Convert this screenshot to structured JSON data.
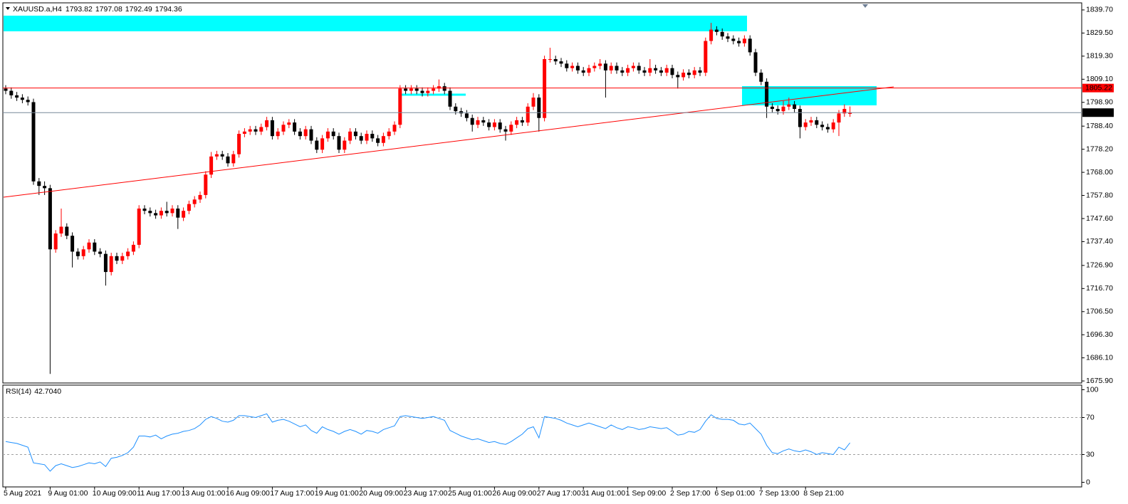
{
  "chart_data": [
    {
      "type": "candlestick",
      "title": "XAUUSD.a,H4",
      "categories": [
        "5 Aug 2021",
        null,
        null,
        null,
        null,
        null,
        null,
        null,
        "9 Aug 01:00",
        null,
        null,
        null,
        null,
        null,
        null,
        null,
        "10 Aug 09:00",
        null,
        null,
        null,
        null,
        null,
        null,
        null,
        "11 Aug 17:00",
        null,
        null,
        null,
        null,
        null,
        null,
        null,
        "13 Aug 01:00",
        null,
        null,
        null,
        null,
        null,
        null,
        null,
        "16 Aug 09:00",
        null,
        null,
        null,
        null,
        null,
        null,
        null,
        "17 Aug 17:00",
        null,
        null,
        null,
        null,
        null,
        null,
        null,
        "19 Aug 01:00",
        null,
        null,
        null,
        null,
        null,
        null,
        null,
        "20 Aug 09:00",
        null,
        null,
        null,
        null,
        null,
        null,
        null,
        "23 Aug 17:00",
        null,
        null,
        null,
        null,
        null,
        null,
        null,
        "25 Aug 01:00",
        null,
        null,
        null,
        null,
        null,
        null,
        null,
        "26 Aug 09:00",
        null,
        null,
        null,
        null,
        null,
        null,
        null,
        "27 Aug 17:00",
        null,
        null,
        null,
        null,
        null,
        null,
        null,
        "31 Aug 01:00",
        null,
        null,
        null,
        null,
        null,
        null,
        null,
        "1 Sep 09:00",
        null,
        null,
        null,
        null,
        null,
        null,
        null,
        "2 Sep 17:00",
        null,
        null,
        null,
        null,
        null,
        null,
        null,
        "6 Sep 01:00",
        null,
        null,
        null,
        null,
        null,
        null,
        null,
        "7 Sep 13:00",
        null,
        null,
        null,
        null,
        null,
        null,
        null,
        "8 Sep 21:00",
        null,
        null,
        null,
        null,
        null,
        null,
        null,
        null
      ],
      "open": [
        1805,
        1804,
        1802,
        1801,
        1800,
        1799,
        1764,
        1762,
        1761,
        1734,
        1741,
        1744,
        1740,
        1733,
        1731,
        1734,
        1737,
        1733,
        1732,
        1724,
        1731,
        1729,
        1731,
        1733,
        1736,
        1752,
        1751,
        1750,
        1749,
        1751,
        1750,
        1752,
        1748,
        1751,
        1754,
        1756,
        1758,
        1767,
        1775,
        1776,
        1775,
        1772,
        1776,
        1785,
        1786,
        1787,
        1786,
        1788,
        1791,
        1784,
        1786,
        1789,
        1790,
        1786,
        1784,
        1787,
        1782,
        1778,
        1783,
        1786,
        1784,
        1778,
        1782,
        1786,
        1784,
        1782,
        1785,
        1783,
        1781,
        1784,
        1786,
        1789,
        1805,
        1804,
        1805,
        1804,
        1803,
        1804,
        1805,
        1806,
        1804,
        1797,
        1795,
        1794,
        1792,
        1789,
        1791,
        1790,
        1788,
        1790,
        1787,
        1786,
        1789,
        1791,
        1790,
        1797,
        1801,
        1792,
        1818,
        1818,
        1817,
        1816,
        1814,
        1815,
        1813,
        1812,
        1814,
        1815,
        1816,
        1813,
        1815,
        1813,
        1812,
        1814,
        1815,
        1813,
        1812,
        1814,
        1813,
        1812,
        1814,
        1811,
        1810,
        1812,
        1811,
        1813,
        1812,
        1826,
        1831,
        1830,
        1828,
        1827,
        1826,
        1825,
        1827,
        1821,
        1812,
        1808,
        1797,
        1796,
        1795,
        1797,
        1798,
        1796,
        1788,
        1790,
        1791,
        1789,
        1788,
        1787,
        1790,
        1794,
        1793.82
      ],
      "high": [
        1806.5,
        1805.5,
        1803.5,
        1802.5,
        1801.5,
        1800.5,
        1765.5,
        1764,
        1762.5,
        1742.5,
        1752,
        1745.5,
        1741.5,
        1734.5,
        1735.5,
        1738.5,
        1738.5,
        1734.5,
        1733.5,
        1732.5,
        1732.5,
        1732.5,
        1734.5,
        1737.5,
        1753.5,
        1753.5,
        1752.5,
        1751.5,
        1752.5,
        1755,
        1753.5,
        1753.5,
        1752.5,
        1755.5,
        1757.5,
        1759.5,
        1768.5,
        1777,
        1777.5,
        1777.5,
        1776.5,
        1777.5,
        1786.5,
        1787.5,
        1788.5,
        1788.5,
        1789.5,
        1792.5,
        1792.5,
        1787.5,
        1790.5,
        1791.5,
        1791.5,
        1787.5,
        1788.5,
        1788.5,
        1783.5,
        1784.5,
        1787.5,
        1787.5,
        1785.5,
        1783.5,
        1787.5,
        1787.5,
        1785.5,
        1786.5,
        1786.5,
        1784.5,
        1785.5,
        1787.5,
        1790.5,
        1806.5,
        1806.5,
        1806.5,
        1806.5,
        1805.5,
        1805.5,
        1806.5,
        1809,
        1807.5,
        1805.5,
        1798.5,
        1796.5,
        1795.5,
        1793.5,
        1792.5,
        1792.5,
        1791.5,
        1791.5,
        1791.5,
        1788.5,
        1790.5,
        1792.5,
        1792.5,
        1798.5,
        1803,
        1802.5,
        1819.5,
        1823,
        1819.5,
        1818.5,
        1817.5,
        1816.5,
        1816.5,
        1814.5,
        1815.5,
        1816.5,
        1818,
        1817.5,
        1816.5,
        1816.5,
        1814.5,
        1815.5,
        1816.5,
        1816.5,
        1814.5,
        1818,
        1815.5,
        1814.5,
        1815.5,
        1815.5,
        1812.5,
        1813.5,
        1813.5,
        1814.5,
        1814.5,
        1827.5,
        1834,
        1832.5,
        1831.5,
        1829.5,
        1828.5,
        1827.5,
        1828.5,
        1828.5,
        1822.5,
        1813.5,
        1809.5,
        1798.5,
        1797.5,
        1799.5,
        1801,
        1799.5,
        1797.5,
        1791.5,
        1792.5,
        1792.5,
        1790.5,
        1789.5,
        1791.5,
        1795.5,
        1798,
        1797.08
      ],
      "low": [
        1802.5,
        1800.5,
        1799.5,
        1798.5,
        1797.5,
        1762.5,
        1758,
        1758,
        1679,
        1732.5,
        1739.5,
        1738.5,
        1726,
        1729.5,
        1729.5,
        1732.5,
        1731.5,
        1730.5,
        1718,
        1722.5,
        1727.5,
        1727.5,
        1729.5,
        1731.5,
        1734.5,
        1749.5,
        1748.5,
        1747.5,
        1747.5,
        1748.5,
        1748.5,
        1743,
        1746.5,
        1749.5,
        1752.5,
        1754.5,
        1756.5,
        1765.5,
        1773.5,
        1773.5,
        1770.5,
        1770.5,
        1774.5,
        1783.5,
        1784.5,
        1784.5,
        1784.5,
        1786.5,
        1782.5,
        1782.5,
        1784.5,
        1787.5,
        1784.5,
        1782.5,
        1782.5,
        1780.5,
        1776.5,
        1776.5,
        1781.5,
        1782.5,
        1776.5,
        1776.5,
        1780.5,
        1782.5,
        1780.5,
        1780.5,
        1781.5,
        1779.5,
        1779.5,
        1782.5,
        1784.5,
        1787.5,
        1802.5,
        1802.5,
        1802.5,
        1801.5,
        1801.5,
        1802.5,
        1803.5,
        1802.5,
        1795.5,
        1793.5,
        1792.5,
        1790.5,
        1786,
        1787.5,
        1788.5,
        1786.5,
        1786.5,
        1785.5,
        1782,
        1784.5,
        1787.5,
        1788.5,
        1788.5,
        1795.5,
        1786,
        1790.5,
        1816.5,
        1815.5,
        1814.5,
        1812.5,
        1812.5,
        1811.5,
        1810.5,
        1810.5,
        1812.5,
        1813.5,
        1801,
        1811.5,
        1811.5,
        1810.5,
        1810.5,
        1812.5,
        1811.5,
        1810.5,
        1810.5,
        1811.5,
        1810.5,
        1810.5,
        1809.5,
        1805,
        1808.5,
        1809.5,
        1809.5,
        1810.5,
        1810.5,
        1824.5,
        1828.5,
        1826.5,
        1825.5,
        1824.5,
        1823.5,
        1823.5,
        1819.5,
        1810.5,
        1806.5,
        1792,
        1794.5,
        1793.5,
        1793.5,
        1795.5,
        1794.5,
        1783,
        1786.5,
        1788.5,
        1787.5,
        1786.5,
        1785.5,
        1785.5,
        1784,
        1792.5,
        1792.49
      ],
      "close": [
        1804,
        1802,
        1801,
        1800,
        1799,
        1764,
        1762,
        1761,
        1734,
        1741,
        1744,
        1740,
        1733,
        1731,
        1734,
        1737,
        1733,
        1732,
        1724,
        1731,
        1729,
        1731,
        1733,
        1736,
        1752,
        1751,
        1750,
        1749,
        1751,
        1750,
        1752,
        1748,
        1751,
        1754,
        1756,
        1758,
        1767,
        1775,
        1776,
        1775,
        1772,
        1776,
        1785,
        1786,
        1787,
        1786,
        1788,
        1791,
        1784,
        1786,
        1789,
        1790,
        1786,
        1784,
        1787,
        1782,
        1778,
        1783,
        1786,
        1784,
        1778,
        1782,
        1786,
        1784,
        1782,
        1785,
        1783,
        1781,
        1784,
        1786,
        1789,
        1805,
        1804,
        1805,
        1804,
        1803,
        1804,
        1805,
        1806,
        1804,
        1797,
        1795,
        1794,
        1792,
        1789,
        1791,
        1790,
        1788,
        1790,
        1787,
        1786,
        1789,
        1791,
        1790,
        1797,
        1801,
        1792,
        1818,
        1818,
        1817,
        1816,
        1814,
        1815,
        1813,
        1812,
        1814,
        1815,
        1816,
        1813,
        1815,
        1813,
        1812,
        1814,
        1815,
        1813,
        1812,
        1814,
        1813,
        1812,
        1814,
        1811,
        1810,
        1812,
        1811,
        1813,
        1812,
        1826,
        1831,
        1830,
        1828,
        1827,
        1826,
        1825,
        1827,
        1821,
        1812,
        1808,
        1797,
        1796,
        1795,
        1797,
        1798,
        1796,
        1788,
        1790,
        1791,
        1789,
        1788,
        1787,
        1790,
        1794,
        1796,
        1794.36
      ],
      "up_color": "#ff0000",
      "down_color": "#000000",
      "bid_color": "#778899",
      "hline": {
        "value": 1805.22,
        "color": "#ff0000"
      },
      "ylim": [
        1675,
        1842.2
      ],
      "yticks": [
        {
          "value": 1839.7,
          "label": "1839.70"
        },
        {
          "value": 1829.5,
          "label": "1829.50"
        },
        {
          "value": 1819.3,
          "label": "1819.30"
        },
        {
          "value": 1809.1,
          "label": "1809.10"
        },
        {
          "value": 1798.9,
          "label": "1798.90"
        },
        {
          "value": 1788.4,
          "label": "1788.40"
        },
        {
          "value": 1778.2,
          "label": "1778.20"
        },
        {
          "value": 1768,
          "label": "1768.00"
        },
        {
          "value": 1757.8,
          "label": "1757.80"
        },
        {
          "value": 1747.6,
          "label": "1747.60"
        },
        {
          "value": 1737.4,
          "label": "1737.40"
        },
        {
          "value": 1726.9,
          "label": "1726.90"
        },
        {
          "value": 1716.7,
          "label": "1716.70"
        },
        {
          "value": 1706.5,
          "label": "1706.50"
        },
        {
          "value": 1696.3,
          "label": "1696.30"
        },
        {
          "value": 1686.1,
          "label": "1686.10"
        },
        {
          "value": 1675.9,
          "label": "1675.90"
        }
      ]
    },
    {
      "type": "line",
      "title": "RSI(14)",
      "last_value_label": "42.7040",
      "color": "#1e90ff",
      "values": [
        44,
        43,
        42,
        40,
        38,
        21,
        20,
        19,
        12,
        18,
        20,
        18,
        16,
        17,
        19,
        21,
        20,
        22,
        17,
        26,
        27,
        29,
        32,
        38,
        50,
        50,
        49,
        51,
        47,
        50,
        52,
        53,
        55,
        56,
        58,
        62,
        68,
        71,
        69,
        66,
        65,
        67,
        72,
        72,
        71,
        70,
        72,
        74,
        65,
        67,
        68,
        66,
        63,
        60,
        62,
        56,
        53,
        60,
        57,
        55,
        52,
        55,
        57,
        55,
        52,
        56,
        55,
        53,
        57,
        59,
        61,
        71,
        72,
        71,
        70,
        69,
        70,
        71,
        69,
        67,
        56,
        53,
        50,
        48,
        46,
        47,
        45,
        43,
        44,
        42,
        41,
        44,
        48,
        52,
        58,
        60,
        48,
        71,
        70,
        69,
        67,
        64,
        62,
        60,
        62,
        64,
        62,
        60,
        58,
        62,
        59,
        57,
        60,
        59,
        57,
        58,
        60,
        59,
        58,
        59,
        55,
        51,
        52,
        55,
        54,
        57,
        66,
        73,
        69,
        68,
        68,
        67,
        63,
        62,
        64,
        58,
        52,
        40,
        32,
        31,
        34,
        36,
        34,
        33,
        35,
        33,
        30,
        32,
        31,
        30,
        38,
        35,
        42.704
      ],
      "levels": [
        30,
        70
      ],
      "ylim": [
        -5,
        105
      ],
      "yticks": [
        100,
        70,
        30,
        0
      ]
    }
  ]
}
